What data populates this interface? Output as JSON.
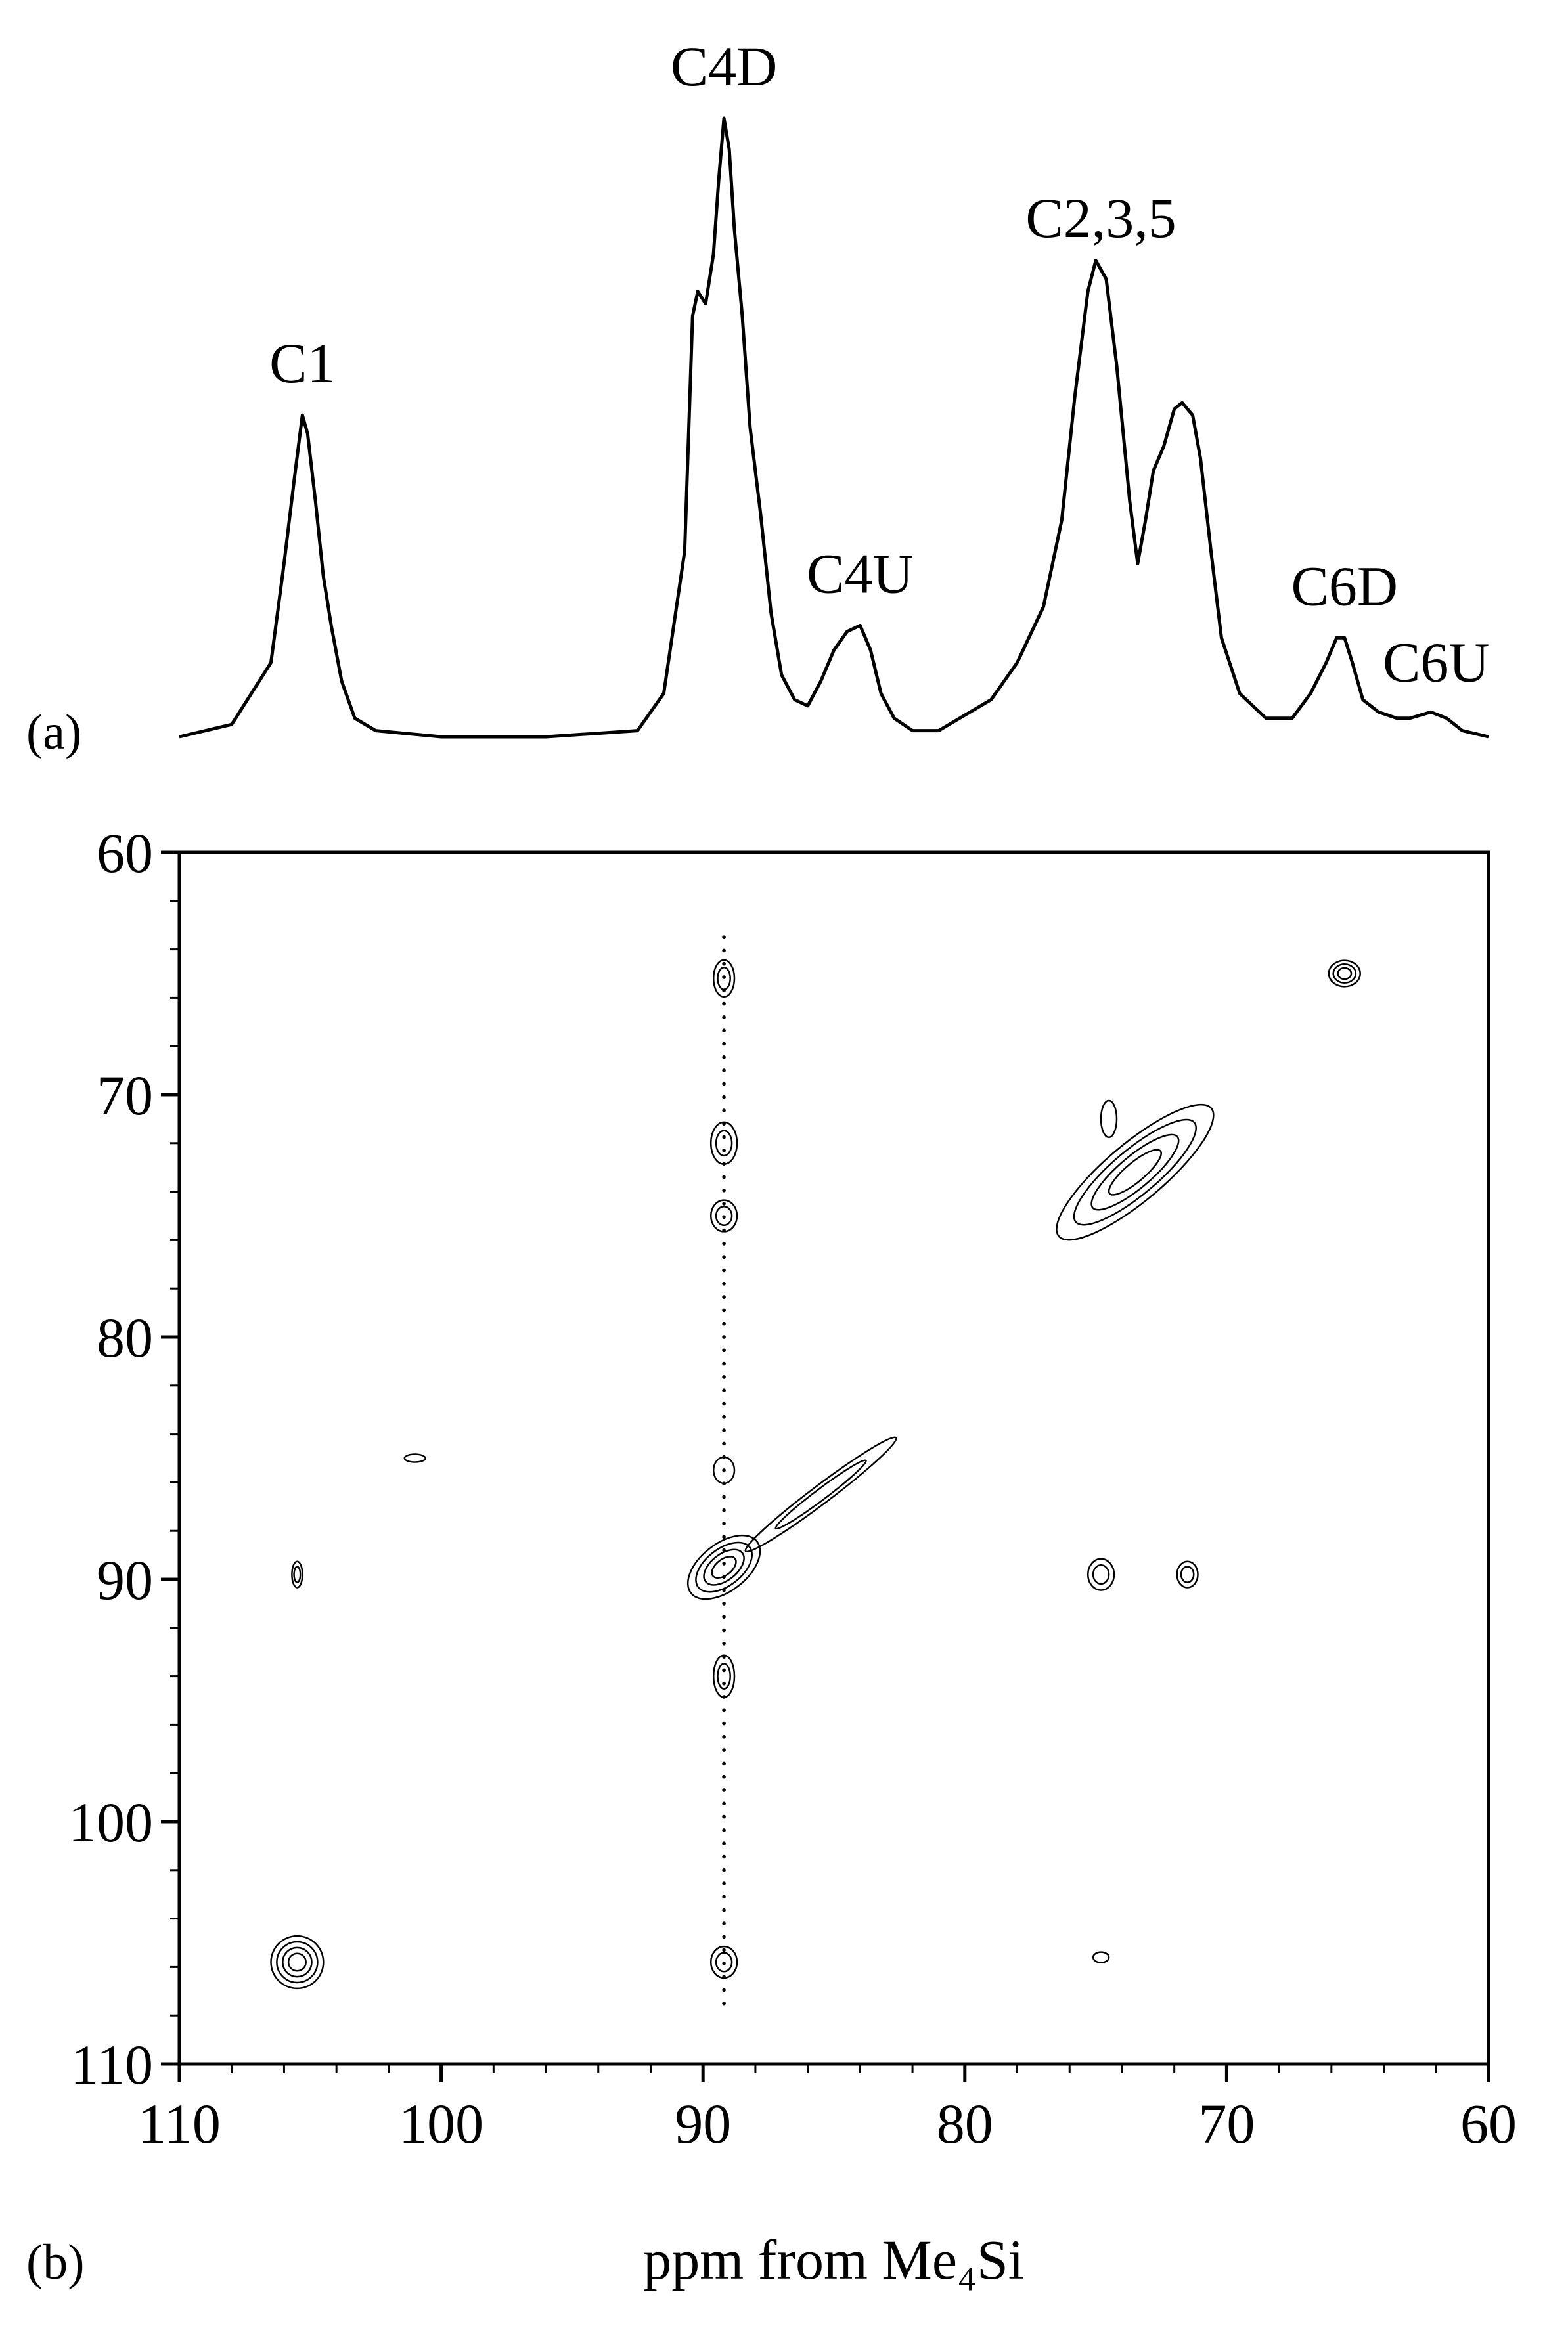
{
  "chart_data": [
    {
      "type": "line",
      "panel_label": "(a)",
      "x_unit": "ppm",
      "x_range": [
        110,
        60
      ],
      "series": [
        {
          "x": [
            110,
            108,
            106.5,
            106,
            105.6,
            105.3,
            105.1,
            104.8,
            104.5,
            104.2,
            103.8,
            103.3,
            102.5,
            100,
            96,
            92.5,
            91.5,
            90.7,
            90.4,
            90.2,
            89.9,
            89.6,
            89.4,
            89.2,
            89.0,
            88.8,
            88.5,
            88.2,
            87.8,
            87.4,
            87.0,
            86.5,
            86.0,
            85.5,
            85.0,
            84.5,
            84.0,
            83.6,
            83.2,
            82.7,
            82.0,
            81.0,
            79.0,
            78.0,
            77.0,
            76.3,
            75.8,
            75.3,
            75.0,
            74.6,
            74.2,
            73.7,
            73.4,
            73.1,
            72.8,
            72.4,
            72.0,
            71.7,
            71.3,
            71.0,
            70.6,
            70.2,
            69.5,
            68.5,
            67.5,
            66.8,
            66.2,
            65.8,
            65.5,
            65.2,
            64.8,
            64.2,
            63.5,
            63.0,
            62.2,
            61.6,
            61.0,
            60.0
          ],
          "y": [
            0.0,
            0.02,
            0.12,
            0.28,
            0.42,
            0.52,
            0.49,
            0.38,
            0.26,
            0.18,
            0.09,
            0.03,
            0.01,
            0.0,
            0.0,
            0.01,
            0.07,
            0.3,
            0.68,
            0.72,
            0.7,
            0.78,
            0.9,
            1.0,
            0.95,
            0.82,
            0.68,
            0.5,
            0.36,
            0.2,
            0.1,
            0.06,
            0.05,
            0.09,
            0.14,
            0.17,
            0.18,
            0.14,
            0.07,
            0.03,
            0.01,
            0.01,
            0.06,
            0.12,
            0.21,
            0.35,
            0.55,
            0.72,
            0.77,
            0.74,
            0.6,
            0.38,
            0.28,
            0.35,
            0.43,
            0.47,
            0.53,
            0.54,
            0.52,
            0.45,
            0.3,
            0.16,
            0.07,
            0.03,
            0.03,
            0.07,
            0.12,
            0.16,
            0.16,
            0.12,
            0.06,
            0.04,
            0.03,
            0.03,
            0.04,
            0.03,
            0.01,
            0.0
          ]
        }
      ],
      "peak_labels": [
        {
          "text": "C1",
          "x": 105.3
        },
        {
          "text": "C4D",
          "x": 89.2
        },
        {
          "text": "C4U",
          "x": 84.0
        },
        {
          "text": "C2,3,5",
          "x": 74.8
        },
        {
          "text": "C6D",
          "x": 65.5
        },
        {
          "text": "C6U",
          "x": 62.0
        }
      ]
    },
    {
      "type": "heatmap",
      "subtype": "contour",
      "panel_label": "(b)",
      "xlabel": "ppm from Me₄Si",
      "xlim": [
        110,
        60
      ],
      "ylim": [
        60,
        110
      ],
      "x_ticks": [
        110,
        100,
        90,
        80,
        70,
        60
      ],
      "y_ticks": [
        60,
        70,
        80,
        90,
        100,
        110
      ],
      "peaks": [
        {
          "x": 105.5,
          "y": 105.8,
          "sx": 1.0,
          "sy": 1.0,
          "angle": -45,
          "levels": 4
        },
        {
          "x": 89.2,
          "y": 89.5,
          "sx": 1.6,
          "sy": 0.9,
          "angle": -38,
          "levels": 4
        },
        {
          "x": 85.5,
          "y": 86.5,
          "sx": 3.6,
          "sy": 0.35,
          "angle": -37,
          "levels": 2
        },
        {
          "x": 73.5,
          "y": 73.2,
          "sx": 3.8,
          "sy": 1.1,
          "angle": -40,
          "levels": 4
        },
        {
          "x": 65.5,
          "y": 65.0,
          "sx": 0.6,
          "sy": 0.5,
          "angle": 0,
          "levels": 3
        },
        {
          "x": 89.2,
          "y": 65.2,
          "sx": 0.4,
          "sy": 0.7,
          "angle": 0,
          "levels": 2
        },
        {
          "x": 89.2,
          "y": 72.0,
          "sx": 0.5,
          "sy": 0.8,
          "angle": 0,
          "levels": 2
        },
        {
          "x": 89.2,
          "y": 75.0,
          "sx": 0.5,
          "sy": 0.6,
          "angle": 0,
          "levels": 2
        },
        {
          "x": 89.2,
          "y": 85.5,
          "sx": 0.4,
          "sy": 0.5,
          "angle": 0,
          "levels": 1
        },
        {
          "x": 89.2,
          "y": 94.0,
          "sx": 0.4,
          "sy": 0.8,
          "angle": 0,
          "levels": 2
        },
        {
          "x": 89.2,
          "y": 105.8,
          "sx": 0.5,
          "sy": 0.6,
          "angle": 0,
          "levels": 2
        },
        {
          "x": 105.5,
          "y": 89.8,
          "sx": 0.2,
          "sy": 0.5,
          "angle": 0,
          "levels": 2
        },
        {
          "x": 74.8,
          "y": 89.8,
          "sx": 0.5,
          "sy": 0.6,
          "angle": 0,
          "levels": 2
        },
        {
          "x": 71.5,
          "y": 89.8,
          "sx": 0.4,
          "sy": 0.5,
          "angle": 0,
          "levels": 2
        },
        {
          "x": 74.5,
          "y": 71.0,
          "sx": 0.3,
          "sy": 0.7,
          "angle": 0,
          "levels": 1
        },
        {
          "x": 74.8,
          "y": 105.6,
          "sx": 0.3,
          "sy": 0.2,
          "angle": 0,
          "levels": 1
        },
        {
          "x": 101.0,
          "y": 85.0,
          "sx": 0.4,
          "sy": 0.15,
          "angle": 0,
          "levels": 1
        }
      ],
      "ridges": [
        {
          "x": 89.2,
          "y_from": 63.5,
          "y_to": 108.0
        }
      ]
    }
  ]
}
